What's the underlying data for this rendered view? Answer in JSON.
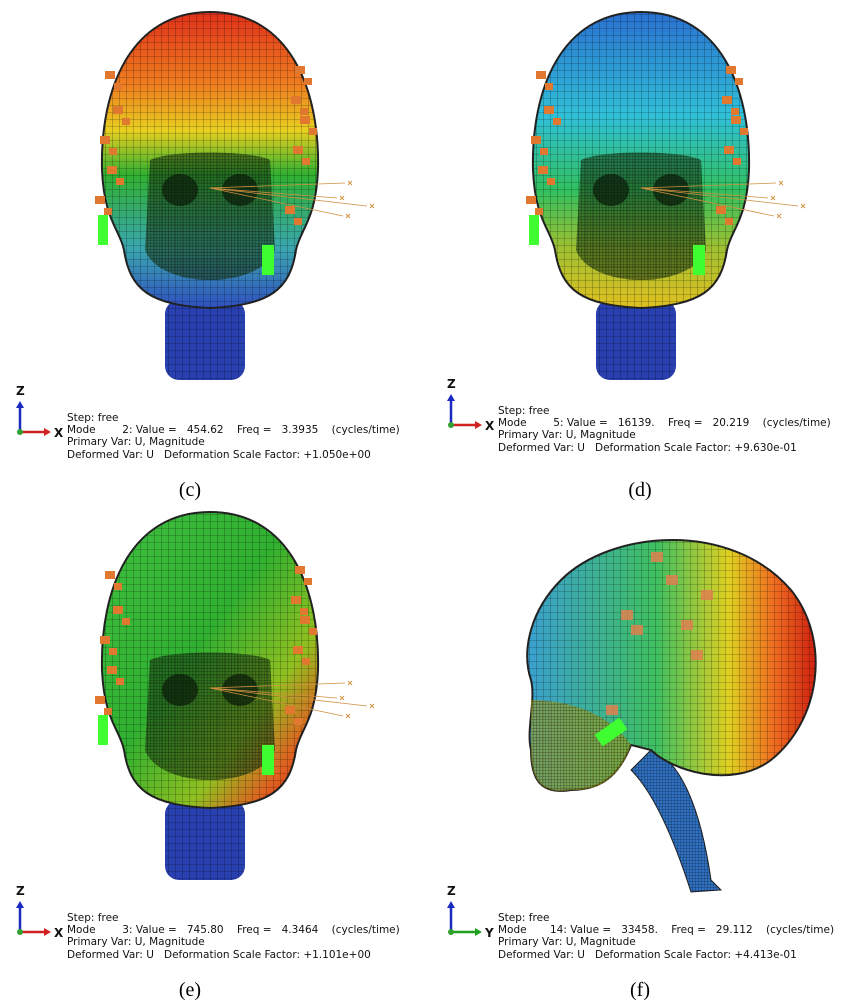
{
  "panels": [
    {
      "caption": "(c)",
      "axis_vertical": "Z",
      "axis_horizontal": "X",
      "step": "Step: free",
      "mode": "Mode        2: Value =   454.62    Freq =   3.3935    (cycles/time)",
      "primary_var": "Primary Var: U, Magnitude",
      "deformed_var": "Deformed Var: U   Deformation Scale Factor: +1.050e+00"
    },
    {
      "caption": "(d)",
      "axis_vertical": "Z",
      "axis_horizontal": "X",
      "step": "Step: free",
      "mode": "Mode        5: Value =   16139.    Freq =   20.219    (cycles/time)",
      "primary_var": "Primary Var: U, Magnitude",
      "deformed_var": "Deformed Var: U   Deformation Scale Factor: +9.630e-01"
    },
    {
      "caption": "(e)",
      "axis_vertical": "Z",
      "axis_horizontal": "X",
      "step": "Step: free",
      "mode": "Mode        3: Value =   745.80    Freq =   4.3464    (cycles/time)",
      "primary_var": "Primary Var: U, Magnitude",
      "deformed_var": "Deformed Var: U   Deformation Scale Factor: +1.101e+00"
    },
    {
      "caption": "(f)",
      "axis_vertical": "Z",
      "axis_horizontal": "Y",
      "step": "Step: free",
      "mode": "Mode       14: Value =   33458.    Freq =   29.112    (cycles/time)",
      "primary_var": "Primary Var: U, Magnitude",
      "deformed_var": "Deformed Var: U   Deformation Scale Factor: +4.413e-01"
    }
  ]
}
